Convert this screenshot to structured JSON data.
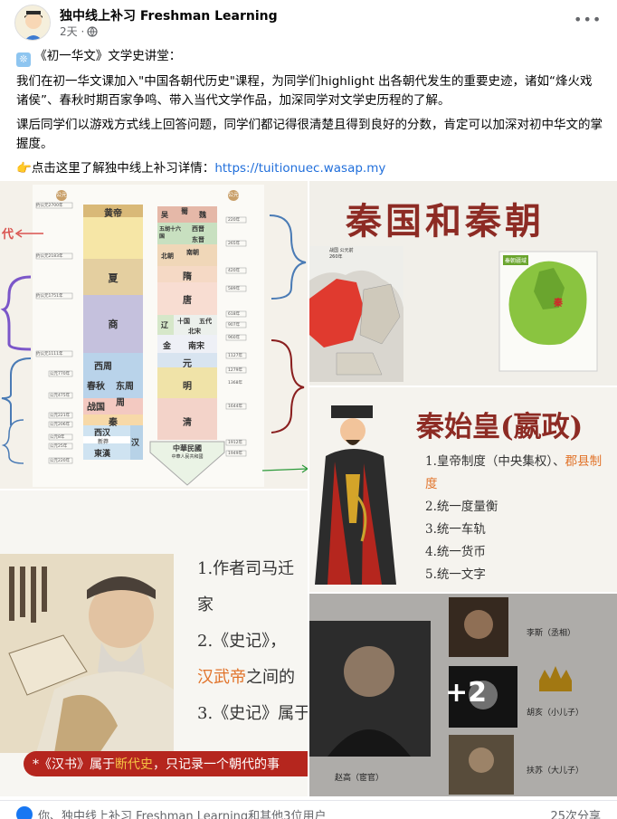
{
  "post": {
    "page_name": "独中线上补习 Freshman Learning",
    "time": "2天 ·",
    "lines": [
      "《初一华文》文学史讲堂：",
      "我们在初一华文课加入\"中国各朝代历史\"课程，为同学们highlight 出各朝代发生的重要史迹，诸如“烽火戏诸侯”、春秋时期百家争鸣、带入当代文学作品，加深同学对文学史历程的了解。",
      "课后同学们以游戏方式线上回答问题，同学们都记得很清楚且得到良好的分数，肯定可以加深对初中华文的掌握度。"
    ],
    "cta_text": "点击这里了解独中线上补习详情：",
    "cta_link": "https://tuitionuec.wasap.my"
  },
  "timeline": {
    "left_label": "代",
    "left_header": "公元",
    "right_header": "公元",
    "left_dynasties": [
      "黄帝",
      "夏",
      "商",
      "西周",
      "春秋",
      "东周",
      "战国",
      "周",
      "秦",
      "西汉",
      "新莽",
      "汉",
      "東漢"
    ],
    "right_dynasties": [
      "吴",
      "蜀",
      "魏",
      "西晋",
      "东晋",
      "五胡十六国",
      "南朝",
      "北朝",
      "隋",
      "唐",
      "辽",
      "十国",
      "五代",
      "北宋",
      "金",
      "南宋",
      "元",
      "明",
      "清",
      "中華民國",
      "中華人民共和國"
    ],
    "left_years": [
      "约公元2700年",
      "约公元2183年",
      "约公元1751年",
      "约公元1111年",
      "公元770年",
      "公元475年",
      "公元221年",
      "公元206年",
      "公元8年",
      "公元25年",
      "公元220年"
    ],
    "right_years": [
      "220年",
      "265年",
      "420年",
      "589年",
      "618年",
      "907年",
      "960年",
      "1127年",
      "1279年",
      "1368年",
      "1644年",
      "1912年",
      "1949年"
    ]
  },
  "qin": {
    "title": "秦国和秦朝",
    "map1_label": "战国 公元前260年",
    "map2_label": "秦朝疆域",
    "map2_mark": "秦"
  },
  "qinshihuang": {
    "title": "秦始皇(嬴政)",
    "items": [
      "1.皇帝制度（中央集权）、",
      "郡县制",
      "度",
      "2.统一度量衡",
      "3.统一车轨",
      "4.统一货币",
      "5.统一文字"
    ]
  },
  "shiji": {
    "item1": "1.作者司马迁",
    "item1b": "家",
    "item2": "2.《史记》，",
    "item2b": "汉武帝",
    "item2c": "之间的",
    "item3": "3.《史记》属于",
    "note_prefix": "*《汉书》属于",
    "note_highlight": "断代史",
    "note_suffix": "，只记录一个朝代的事"
  },
  "figures": {
    "more_count": "+2",
    "names": [
      "李斯（丞相）",
      "胡亥（小儿子）",
      "扶苏（大儿子）",
      "赵高（宦官）"
    ]
  },
  "footer": {
    "reactors": "你、独中线上补习 Freshman Learning和其他3位用户",
    "shares": "25次分享"
  },
  "colors": {
    "link": "#216fdb",
    "accent_red": "#b5261e",
    "bracket_blue": "#4a7bb5",
    "bracket_purple": "#7b56c9",
    "bracket_dark": "#8a1f1f"
  }
}
